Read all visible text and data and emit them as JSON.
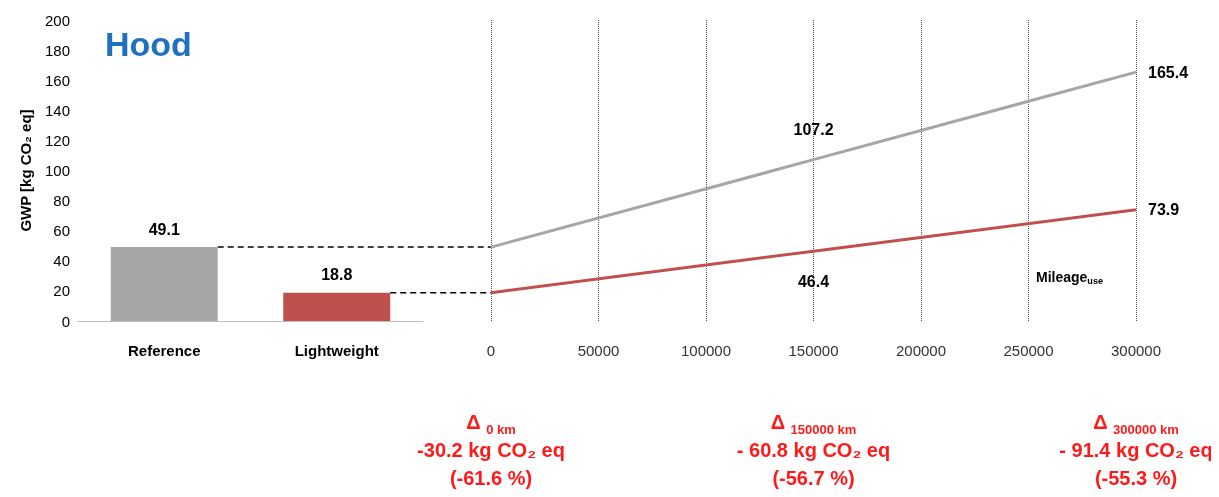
{
  "chart_data": [
    {
      "type": "bar",
      "title": "Hood",
      "ylabel": "GWP [kg CO₂ eq]",
      "categories": [
        "Reference",
        "Lightweight"
      ],
      "values": [
        49.1,
        18.8
      ],
      "colors": [
        "#a6a6a6",
        "#c0504d"
      ],
      "data_labels": true,
      "ylim": [
        0,
        200
      ],
      "yticks": [
        0,
        20,
        40,
        60,
        80,
        100,
        120,
        140,
        160,
        180,
        200
      ],
      "grid": false,
      "ref_lines": [
        {
          "axis": "y",
          "value": 49.1,
          "line_style": "dashed",
          "color": "#000000"
        },
        {
          "axis": "y",
          "value": 18.8,
          "line_style": "dashed",
          "color": "#000000"
        }
      ]
    },
    {
      "type": "line",
      "xlabel": "Mileage$_{use}$",
      "xlim": [
        0,
        300000
      ],
      "xticks": [
        0,
        50000,
        100000,
        150000,
        200000,
        250000,
        300000
      ],
      "ylim": [
        0,
        200
      ],
      "tick_labels": "x",
      "grid": "x",
      "marker": "none",
      "line_style": "solid",
      "series": [
        {
          "color": "#a6a6a6",
          "x": [
            0,
            150000,
            300000
          ],
          "values": [
            49.1,
            107.2,
            165.4
          ],
          "value_labels": [
            null,
            "107.2",
            "165.4"
          ]
        },
        {
          "color": "#c0504d",
          "x": [
            0,
            150000,
            300000
          ],
          "values": [
            18.8,
            46.4,
            73.9
          ],
          "value_labels": [
            null,
            "46.4",
            "73.9"
          ]
        }
      ],
      "annotations": [
        "Δ $_{0 km}$\n-30.2 kg CO₂ eq\n(-61.6 %)",
        "Δ $_{150000 km}$\n- 60.8 kg CO₂ eq\n(-56.7 %)",
        "Δ $_{300000 km}$\n- 91.4 kg CO₂ eq\n(-55.3 %)"
      ]
    }
  ]
}
